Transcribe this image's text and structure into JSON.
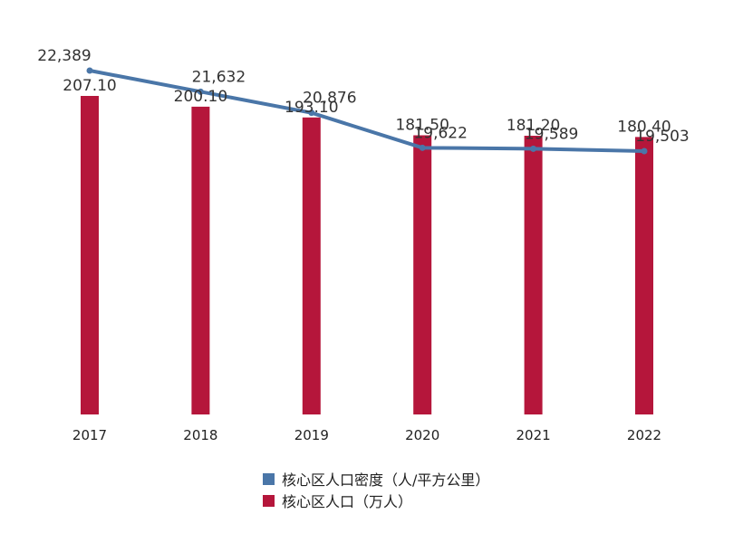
{
  "chart_data": {
    "type": "bar",
    "categories": [
      "2017",
      "2018",
      "2019",
      "2020",
      "2021",
      "2022"
    ],
    "series": [
      {
        "name": "核心区人口密度（人/平方公里）",
        "type": "line",
        "values": [
          22389,
          21632,
          20876,
          19622,
          19589,
          19503
        ],
        "labels": [
          "22,389",
          "21,632",
          "20,876",
          "19,622",
          "19,589",
          "19,503"
        ],
        "color": "#4a76a8"
      },
      {
        "name": "核心区人口（万人）",
        "type": "bar",
        "values": [
          207.1,
          200.1,
          193.1,
          181.5,
          181.2,
          180.4
        ],
        "labels": [
          "207.10",
          "200.10",
          "193.10",
          "181.50",
          "181.20",
          "180.40"
        ],
        "color": "#b5163b"
      }
    ],
    "title": "",
    "xlabel": "",
    "ylabel": "",
    "grid": false,
    "legend_position": "bottom"
  }
}
